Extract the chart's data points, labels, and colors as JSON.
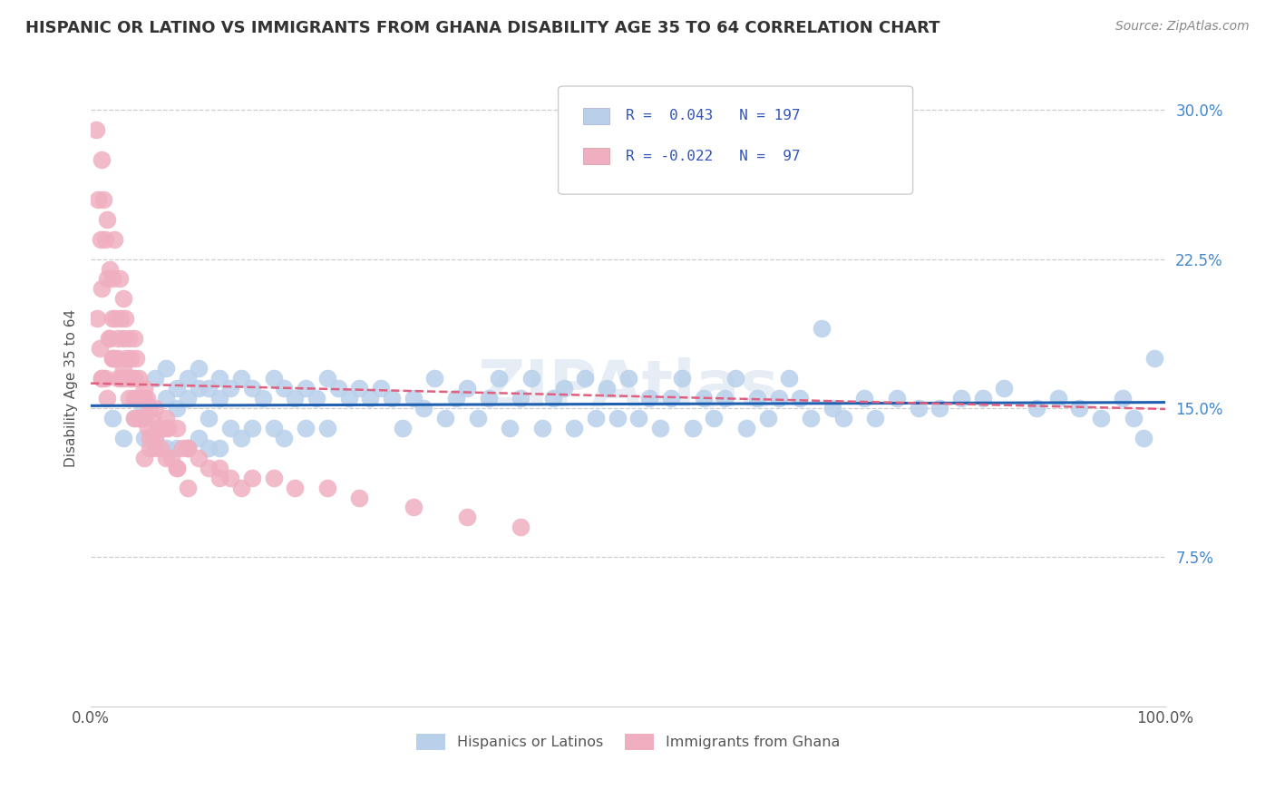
{
  "title": "HISPANIC OR LATINO VS IMMIGRANTS FROM GHANA DISABILITY AGE 35 TO 64 CORRELATION CHART",
  "source": "Source: ZipAtlas.com",
  "ylabel": "Disability Age 35 to 64",
  "xmin": 0.0,
  "xmax": 1.0,
  "ymin": 0.0,
  "ymax": 0.32,
  "xticks": [
    0.0,
    1.0
  ],
  "xticklabels": [
    "0.0%",
    "100.0%"
  ],
  "yticks": [
    0.075,
    0.15,
    0.225,
    0.3
  ],
  "yticklabels": [
    "7.5%",
    "15.0%",
    "22.5%",
    "30.0%"
  ],
  "blue_R": 0.043,
  "blue_N": 197,
  "pink_R": -0.022,
  "pink_N": 97,
  "blue_color": "#b8d0ea",
  "pink_color": "#f0afc0",
  "blue_line_color": "#2060b0",
  "pink_line_color": "#e06080",
  "legend1": "Hispanics or Latinos",
  "legend2": "Immigrants from Ghana",
  "watermark": "ZIPAtlas",
  "background_color": "#ffffff",
  "grid_color": "#c8c8c8",
  "title_color": "#333333",
  "blue_scatter_x": [
    0.02,
    0.03,
    0.04,
    0.04,
    0.05,
    0.05,
    0.06,
    0.06,
    0.07,
    0.07,
    0.07,
    0.08,
    0.08,
    0.08,
    0.09,
    0.09,
    0.09,
    0.1,
    0.1,
    0.1,
    0.11,
    0.11,
    0.11,
    0.12,
    0.12,
    0.12,
    0.13,
    0.13,
    0.14,
    0.14,
    0.15,
    0.15,
    0.16,
    0.17,
    0.17,
    0.18,
    0.18,
    0.19,
    0.2,
    0.2,
    0.21,
    0.22,
    0.22,
    0.23,
    0.24,
    0.25,
    0.26,
    0.27,
    0.28,
    0.29,
    0.3,
    0.31,
    0.32,
    0.33,
    0.34,
    0.35,
    0.36,
    0.37,
    0.38,
    0.39,
    0.4,
    0.41,
    0.42,
    0.43,
    0.44,
    0.45,
    0.46,
    0.47,
    0.48,
    0.49,
    0.5,
    0.51,
    0.52,
    0.53,
    0.54,
    0.55,
    0.56,
    0.57,
    0.58,
    0.59,
    0.6,
    0.61,
    0.62,
    0.63,
    0.64,
    0.65,
    0.66,
    0.67,
    0.68,
    0.69,
    0.7,
    0.72,
    0.73,
    0.75,
    0.77,
    0.79,
    0.81,
    0.83,
    0.85,
    0.88,
    0.9,
    0.92,
    0.94,
    0.96,
    0.97,
    0.98,
    0.99
  ],
  "blue_scatter_y": [
    0.145,
    0.135,
    0.155,
    0.145,
    0.15,
    0.135,
    0.165,
    0.135,
    0.17,
    0.155,
    0.13,
    0.16,
    0.15,
    0.13,
    0.165,
    0.155,
    0.13,
    0.17,
    0.16,
    0.135,
    0.16,
    0.145,
    0.13,
    0.165,
    0.155,
    0.13,
    0.16,
    0.14,
    0.165,
    0.135,
    0.16,
    0.14,
    0.155,
    0.165,
    0.14,
    0.16,
    0.135,
    0.155,
    0.16,
    0.14,
    0.155,
    0.165,
    0.14,
    0.16,
    0.155,
    0.16,
    0.155,
    0.16,
    0.155,
    0.14,
    0.155,
    0.15,
    0.165,
    0.145,
    0.155,
    0.16,
    0.145,
    0.155,
    0.165,
    0.14,
    0.155,
    0.165,
    0.14,
    0.155,
    0.16,
    0.14,
    0.165,
    0.145,
    0.16,
    0.145,
    0.165,
    0.145,
    0.155,
    0.14,
    0.155,
    0.165,
    0.14,
    0.155,
    0.145,
    0.155,
    0.165,
    0.14,
    0.155,
    0.145,
    0.155,
    0.165,
    0.155,
    0.145,
    0.19,
    0.15,
    0.145,
    0.155,
    0.145,
    0.155,
    0.15,
    0.15,
    0.155,
    0.155,
    0.16,
    0.15,
    0.155,
    0.15,
    0.145,
    0.155,
    0.145,
    0.135,
    0.175
  ],
  "pink_scatter_x": [
    0.005,
    0.007,
    0.009,
    0.01,
    0.01,
    0.012,
    0.013,
    0.015,
    0.015,
    0.017,
    0.018,
    0.02,
    0.02,
    0.02,
    0.022,
    0.023,
    0.025,
    0.025,
    0.027,
    0.028,
    0.03,
    0.03,
    0.03,
    0.032,
    0.033,
    0.035,
    0.035,
    0.037,
    0.038,
    0.04,
    0.04,
    0.04,
    0.042,
    0.043,
    0.045,
    0.045,
    0.047,
    0.048,
    0.05,
    0.05,
    0.05,
    0.052,
    0.053,
    0.055,
    0.055,
    0.057,
    0.06,
    0.06,
    0.062,
    0.065,
    0.07,
    0.07,
    0.072,
    0.075,
    0.08,
    0.08,
    0.085,
    0.09,
    0.09,
    0.1,
    0.11,
    0.12,
    0.13,
    0.14,
    0.15,
    0.17,
    0.19,
    0.22,
    0.25,
    0.3,
    0.35,
    0.4,
    0.12,
    0.09,
    0.07,
    0.05,
    0.03,
    0.02,
    0.015,
    0.01,
    0.008,
    0.006,
    0.025,
    0.04,
    0.06,
    0.08,
    0.055,
    0.045,
    0.035,
    0.028,
    0.022,
    0.018,
    0.013,
    0.01
  ],
  "pink_scatter_y": [
    0.29,
    0.255,
    0.235,
    0.275,
    0.21,
    0.255,
    0.235,
    0.215,
    0.245,
    0.185,
    0.22,
    0.215,
    0.195,
    0.175,
    0.235,
    0.195,
    0.185,
    0.175,
    0.215,
    0.195,
    0.205,
    0.185,
    0.165,
    0.195,
    0.175,
    0.185,
    0.165,
    0.175,
    0.165,
    0.185,
    0.165,
    0.145,
    0.175,
    0.155,
    0.165,
    0.145,
    0.155,
    0.145,
    0.16,
    0.145,
    0.125,
    0.155,
    0.14,
    0.15,
    0.135,
    0.145,
    0.15,
    0.13,
    0.14,
    0.13,
    0.145,
    0.125,
    0.14,
    0.125,
    0.14,
    0.12,
    0.13,
    0.13,
    0.11,
    0.125,
    0.12,
    0.115,
    0.115,
    0.11,
    0.115,
    0.115,
    0.11,
    0.11,
    0.105,
    0.1,
    0.095,
    0.09,
    0.12,
    0.13,
    0.14,
    0.155,
    0.17,
    0.175,
    0.155,
    0.165,
    0.18,
    0.195,
    0.165,
    0.155,
    0.135,
    0.12,
    0.13,
    0.145,
    0.155,
    0.165,
    0.175,
    0.185,
    0.165,
    0.165
  ]
}
